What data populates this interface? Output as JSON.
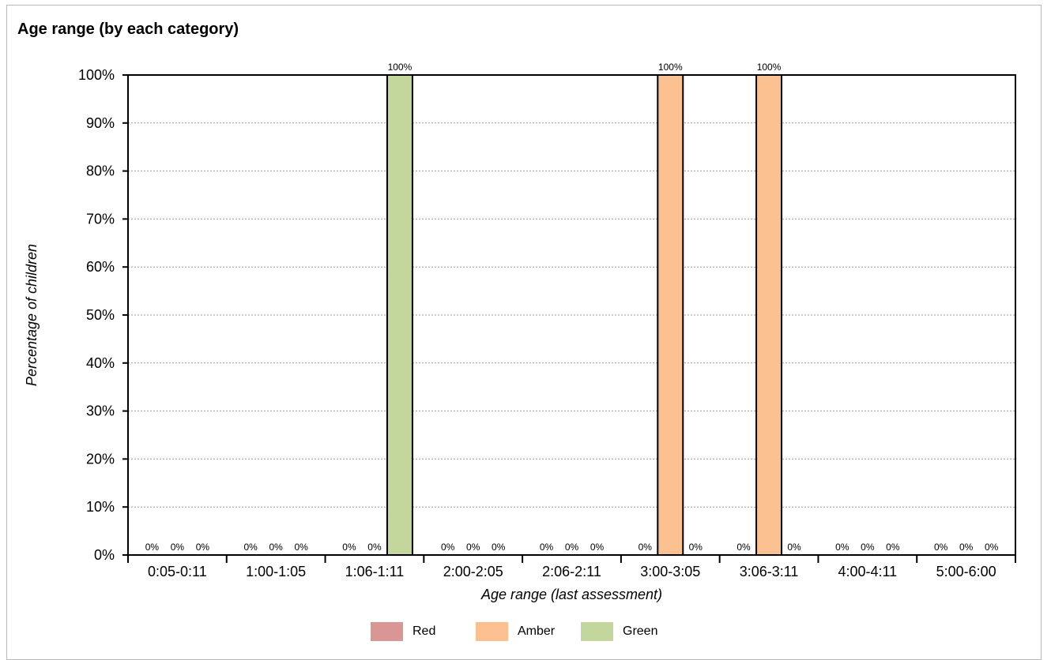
{
  "chart_data": {
    "type": "bar",
    "title": "Age range (by each category)",
    "xlabel": "Age range (last assessment)",
    "ylabel": "Percentage of children",
    "ylim": [
      0,
      100
    ],
    "y_ticks": [
      "0%",
      "10%",
      "20%",
      "30%",
      "40%",
      "50%",
      "60%",
      "70%",
      "80%",
      "90%",
      "100%"
    ],
    "grid": true,
    "legend_position": "bottom",
    "categories": [
      "0:05-0:11",
      "1:00-1:05",
      "1:06-1:11",
      "2:00-2:05",
      "2:06-2:11",
      "3:00-3:05",
      "3:06-3:11",
      "4:00-4:11",
      "5:00-6:00"
    ],
    "series": [
      {
        "name": "Red",
        "color": "#da9694",
        "values": [
          0,
          0,
          0,
          0,
          0,
          0,
          0,
          0,
          0
        ]
      },
      {
        "name": "Amber",
        "color": "#fac090",
        "values": [
          0,
          0,
          0,
          0,
          0,
          100,
          100,
          0,
          0
        ]
      },
      {
        "name": "Green",
        "color": "#c3d69b",
        "values": [
          0,
          0,
          100,
          0,
          0,
          0,
          0,
          0,
          0
        ]
      }
    ],
    "data_labels": [
      [
        "0%",
        "0%",
        "0%"
      ],
      [
        "0%",
        "0%",
        "0%"
      ],
      [
        "0%",
        "0%",
        "100%"
      ],
      [
        "0%",
        "0%",
        "0%"
      ],
      [
        "0%",
        "0%",
        "0%"
      ],
      [
        "0%",
        "100%",
        "0%"
      ],
      [
        "0%",
        "100%",
        "0%"
      ],
      [
        "0%",
        "0%",
        "0%"
      ],
      [
        "0%",
        "0%",
        "0%"
      ]
    ]
  }
}
